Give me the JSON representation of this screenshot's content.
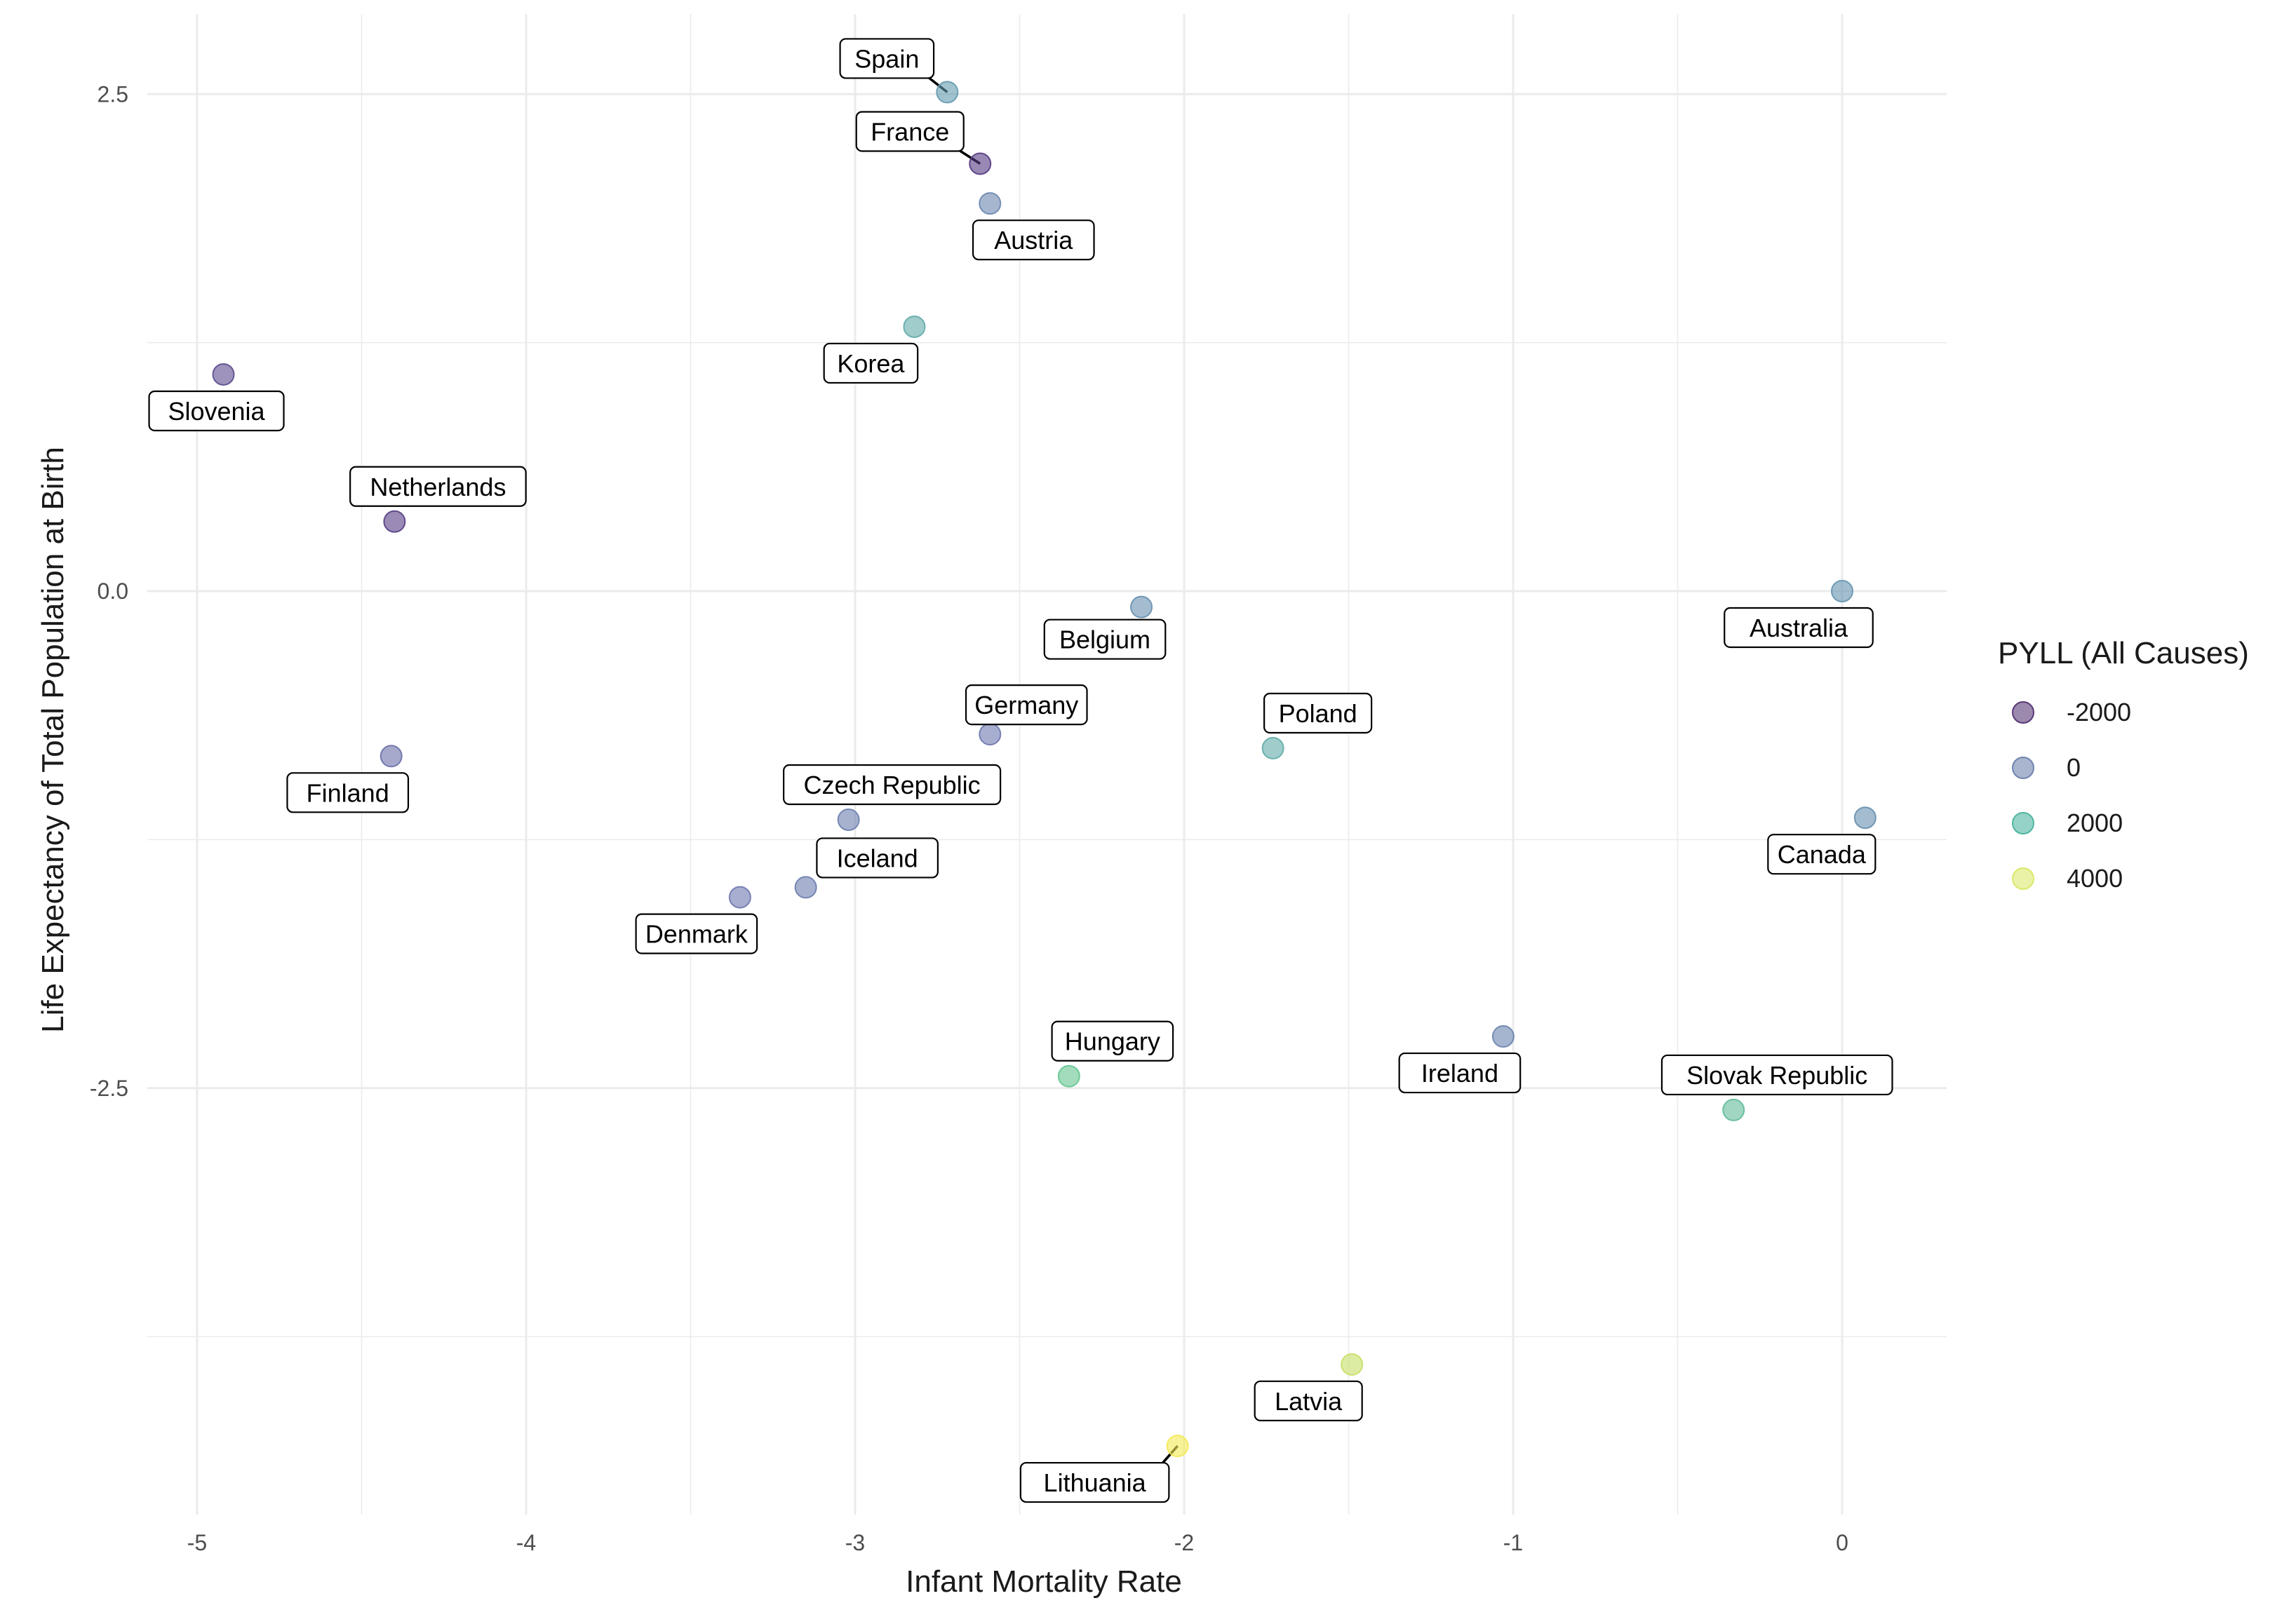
{
  "chart_data": {
    "type": "scatter",
    "title": "",
    "xlabel": "Infant Mortality Rate",
    "ylabel": "Life Expectancy of Total Population at Birth",
    "xlim": [
      -5.25,
      0.32
    ],
    "ylim": [
      -4.75,
      2.9
    ],
    "x_ticks": [
      -5,
      -4,
      -3,
      -2,
      -1,
      0
    ],
    "y_ticks": [
      2.5,
      0.0,
      -2.5
    ],
    "y_tick_labels": [
      "2.5",
      "0.0",
      "-2.5"
    ],
    "grid": true,
    "legend": {
      "title": "PYLL (All Causes)",
      "position": "right",
      "entries": [
        {
          "label": "-2000",
          "color": "#5a3a78"
        },
        {
          "label": "0",
          "color": "#6f84ad"
        },
        {
          "label": "2000",
          "color": "#4fb6a0"
        },
        {
          "label": "4000",
          "color": "#dbe96b"
        }
      ]
    },
    "points": [
      {
        "label": "Spain",
        "x": -2.72,
        "y": 2.51,
        "pyll": 500
      },
      {
        "label": "France",
        "x": -2.62,
        "y": 2.15,
        "pyll": -2400
      },
      {
        "label": "Austria",
        "x": -2.59,
        "y": 1.95,
        "pyll": -400
      },
      {
        "label": "Korea",
        "x": -2.82,
        "y": 1.33,
        "pyll": 1300
      },
      {
        "label": "Slovenia",
        "x": -4.92,
        "y": 1.09,
        "pyll": -2000
      },
      {
        "label": "Netherlands",
        "x": -4.4,
        "y": 0.35,
        "pyll": -2300
      },
      {
        "label": "Belgium",
        "x": -2.13,
        "y": -0.08,
        "pyll": 0
      },
      {
        "label": "Australia",
        "x": 0.0,
        "y": 0.0,
        "pyll": 200
      },
      {
        "label": "Germany",
        "x": -2.59,
        "y": -0.72,
        "pyll": -1000
      },
      {
        "label": "Poland",
        "x": -1.73,
        "y": -0.79,
        "pyll": 1400
      },
      {
        "label": "Finland",
        "x": -4.41,
        "y": -0.83,
        "pyll": -1200
      },
      {
        "label": "Czech Republic",
        "x": -3.02,
        "y": -1.15,
        "pyll": -700
      },
      {
        "label": "Canada",
        "x": 0.07,
        "y": -1.14,
        "pyll": 0
      },
      {
        "label": "Iceland",
        "x": -3.15,
        "y": -1.49,
        "pyll": -800
      },
      {
        "label": "Denmark",
        "x": -3.35,
        "y": -1.54,
        "pyll": -1000
      },
      {
        "label": "Ireland",
        "x": -1.03,
        "y": -2.24,
        "pyll": -500
      },
      {
        "label": "Hungary",
        "x": -2.35,
        "y": -2.44,
        "pyll": 2800
      },
      {
        "label": "Slovak Republic",
        "x": -0.33,
        "y": -2.61,
        "pyll": 2200
      },
      {
        "label": "Latvia",
        "x": -1.49,
        "y": -3.89,
        "pyll": 4300
      },
      {
        "label": "Lithuania",
        "x": -2.02,
        "y": -4.3,
        "pyll": 4900
      }
    ]
  }
}
